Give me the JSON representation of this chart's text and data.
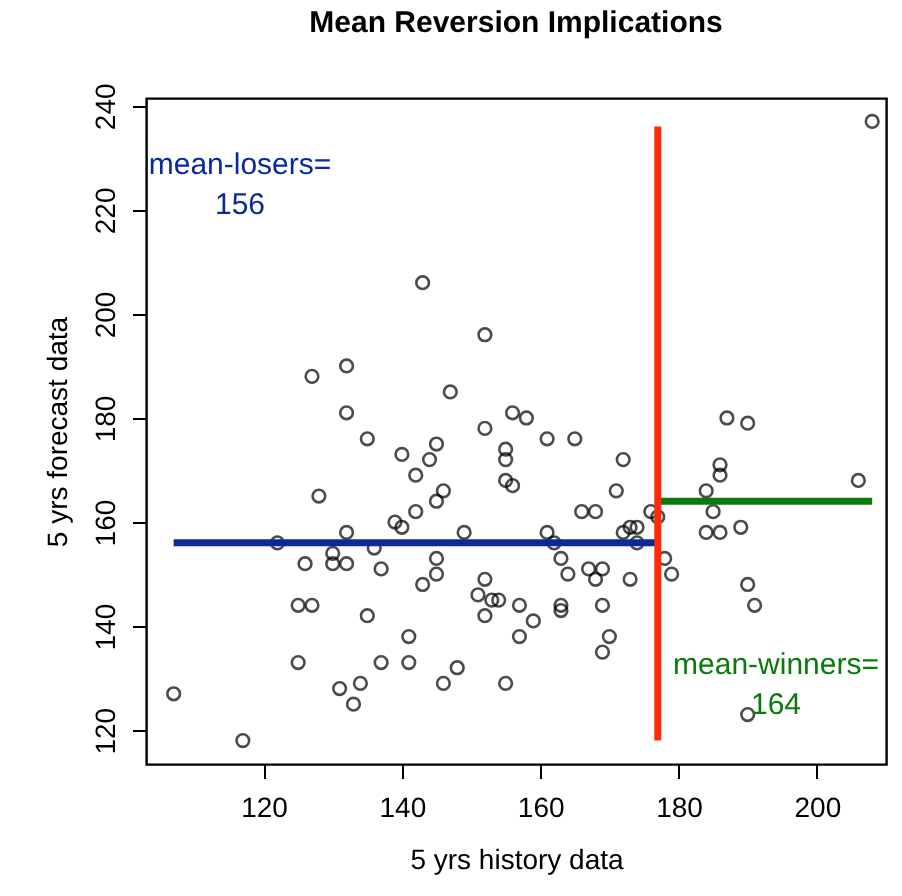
{
  "chart_data": {
    "type": "scatter",
    "title": "Mean Reversion Implications",
    "xlabel": "5 yrs history data",
    "ylabel": "5 yrs forecast data",
    "xlim": [
      103,
      210
    ],
    "ylim": [
      113.5,
      241.5
    ],
    "xticks": [
      120,
      140,
      160,
      180,
      200
    ],
    "yticks": [
      120,
      140,
      160,
      180,
      200,
      220,
      240
    ],
    "grid": false,
    "series": [
      {
        "marker": "circle",
        "color": "#000000",
        "x": [
          143,
          152,
          127,
          132,
          132,
          147,
          135,
          156,
          152,
          140,
          144,
          145,
          155,
          155,
          142,
          155,
          156,
          128,
          146,
          145,
          142,
          139,
          140,
          132,
          149,
          122,
          136,
          130,
          126,
          130,
          132,
          137,
          145,
          145,
          143,
          152,
          151,
          153,
          152,
          157,
          125,
          127,
          135,
          141,
          157,
          125,
          137,
          141,
          148,
          146,
          155,
          131,
          134,
          133,
          107,
          117,
          208,
          158,
          161,
          165,
          172,
          187,
          190,
          186,
          186,
          171,
          184,
          206,
          166,
          168,
          185,
          176,
          177,
          161,
          172,
          173,
          174,
          174,
          162,
          184,
          186,
          189,
          163,
          167,
          169,
          178,
          164,
          168,
          173,
          179,
          190,
          191,
          154,
          163,
          163,
          159,
          169,
          170,
          169,
          190
        ],
        "values": [
          206,
          196,
          188,
          190,
          181,
          185,
          176,
          181,
          178,
          173,
          172,
          175,
          174,
          172,
          169,
          168,
          167,
          165,
          166,
          164,
          162,
          160,
          159,
          158,
          158,
          156,
          155,
          154,
          152,
          152,
          152,
          151,
          153,
          150,
          148,
          149,
          146,
          145,
          142,
          144,
          144,
          144,
          142,
          138,
          138,
          133,
          133,
          133,
          132,
          129,
          129,
          128,
          129,
          125,
          127,
          118,
          237,
          180,
          176,
          176,
          172,
          180,
          179,
          171,
          169,
          166,
          166,
          168,
          162,
          162,
          162,
          162,
          161,
          158,
          158,
          159,
          159,
          156,
          156,
          158,
          158,
          159,
          153,
          151,
          151,
          153,
          150,
          149,
          149,
          150,
          148,
          144,
          145,
          144,
          143,
          141,
          144,
          138,
          135,
          123
        ]
      },
      {
        "type": "line",
        "color": "#0a2a9c",
        "x": [
          107,
          177
        ],
        "values": [
          156,
          156
        ]
      },
      {
        "type": "line",
        "color": "#0a7a0a",
        "x": [
          177,
          208
        ],
        "values": [
          164,
          164
        ]
      },
      {
        "type": "line",
        "color": "#ff2a0a",
        "x": [
          177,
          177
        ],
        "values": [
          118,
          236
        ]
      }
    ],
    "annotations": [
      "mean-losers=\n156",
      "mean-winners=\n164"
    ]
  }
}
